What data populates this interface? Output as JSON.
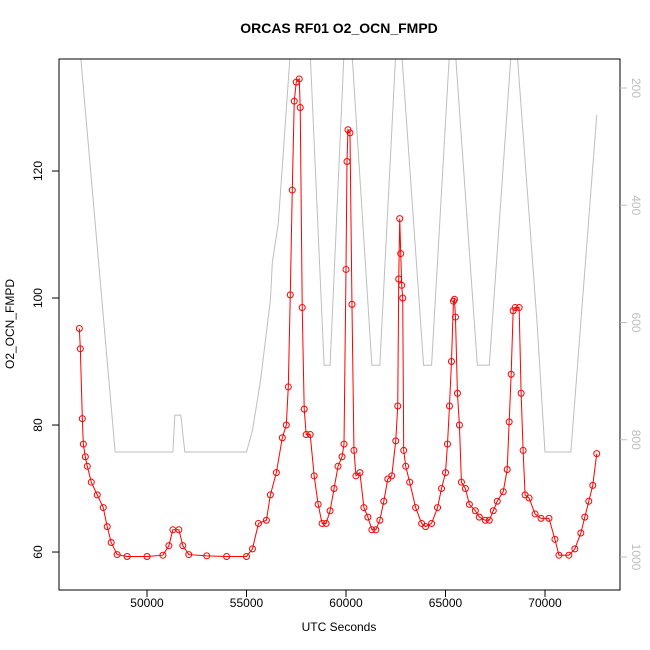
{
  "chart_data": {
    "type": "line",
    "title": "ORCAS RF01 O2_OCN_FMPD",
    "x_label": "UTC Seconds",
    "y_label": "O2_OCN_FMPD",
    "xlim": [
      45578,
      73769
    ],
    "ylim": [
      54.02,
      137.64
    ],
    "y2lim": [
      1056.3,
      150.5
    ],
    "xticks": [
      50000,
      55000,
      60000,
      65000,
      70000
    ],
    "yticks": [
      60,
      80,
      100,
      120
    ],
    "y2ticks": [
      200,
      400,
      600,
      800,
      1000
    ],
    "series": [
      {
        "color": "#ff0000",
        "markers": true,
        "x": [
          46600,
          46650,
          46750,
          46800,
          46900,
          47000,
          47200,
          47500,
          47800,
          48000,
          48200,
          48500,
          49000,
          50000,
          50800,
          51100,
          51300,
          51600,
          51800,
          52100,
          53000,
          54000,
          55000,
          55300,
          55600,
          56000,
          56200,
          56500,
          56800,
          57000,
          57100,
          57200,
          57300,
          57400,
          57500,
          57650,
          57700,
          57800,
          57900,
          58000,
          58200,
          58400,
          58600,
          58800,
          59000,
          59200,
          59400,
          59600,
          59800,
          59900,
          60000,
          60050,
          60100,
          60200,
          60300,
          60400,
          60500,
          60700,
          60900,
          61100,
          61300,
          61500,
          61700,
          61900,
          62100,
          62300,
          62500,
          62600,
          62650,
          62700,
          62750,
          62800,
          62850,
          62900,
          63000,
          63200,
          63500,
          63800,
          64000,
          64300,
          64600,
          64800,
          65000,
          65100,
          65200,
          65300,
          65400,
          65450,
          65500,
          65600,
          65700,
          65800,
          66000,
          66200,
          66500,
          66700,
          67000,
          67200,
          67400,
          67600,
          67900,
          68100,
          68200,
          68300,
          68400,
          68500,
          68700,
          68800,
          68900,
          69000,
          69200,
          69500,
          69800,
          70200,
          70500,
          70700,
          71200,
          71500,
          71800,
          72000,
          72200,
          72400,
          72600
        ],
        "values": [
          95.2,
          92,
          81,
          77,
          75,
          73.5,
          71,
          69,
          67,
          64,
          61.5,
          59.6,
          59.3,
          59.3,
          59.5,
          61,
          63.5,
          63.5,
          61,
          59.6,
          59.4,
          59.3,
          59.3,
          60.5,
          64.5,
          65,
          69,
          72.5,
          78,
          80,
          86,
          100.5,
          117,
          131,
          134,
          134.5,
          130,
          98.5,
          82.5,
          78.5,
          78.5,
          72,
          67.5,
          64.5,
          64.5,
          66.5,
          70,
          73.5,
          75,
          77,
          104.5,
          121.5,
          126.5,
          126,
          99,
          76,
          72,
          72.5,
          67,
          65.5,
          63.5,
          63.5,
          65,
          68,
          71.5,
          72,
          77.5,
          83,
          103,
          112.5,
          107,
          102,
          100,
          76,
          73.5,
          71,
          67,
          64.5,
          64,
          64.5,
          67,
          70,
          72.5,
          77,
          83,
          90,
          99.5,
          99.8,
          97,
          85,
          80,
          71,
          70,
          67.5,
          66.5,
          65.5,
          65,
          65,
          66.5,
          68,
          69.5,
          73,
          80.5,
          88,
          98,
          98.5,
          98.5,
          85,
          76,
          69,
          68.5,
          66,
          65.3,
          65.3,
          62,
          59.5,
          59.5,
          60.5,
          63,
          65.5,
          68,
          70.5,
          75.5
        ]
      },
      {
        "color": "#bebebe",
        "axis": "y2",
        "x": [
          46650,
          48400,
          51300,
          51400,
          51700,
          51900,
          55000,
          55300,
          55700,
          56200,
          56300,
          56600,
          57200,
          58200,
          58900,
          59200,
          59900,
          60300,
          61300,
          61700,
          62500,
          62800,
          63900,
          64300,
          65200,
          65500,
          66600,
          67200,
          68300,
          68600,
          69600,
          70000,
          71300,
          72600
        ],
        "values": [
          140,
          821,
          821,
          758,
          758,
          821,
          821,
          784,
          700,
          562,
          497,
          430,
          140,
          140,
          673,
          673,
          140,
          140,
          673,
          673,
          140,
          140,
          673,
          673,
          140,
          140,
          673,
          673,
          140,
          140,
          600,
          821,
          821,
          246
        ]
      }
    ]
  }
}
